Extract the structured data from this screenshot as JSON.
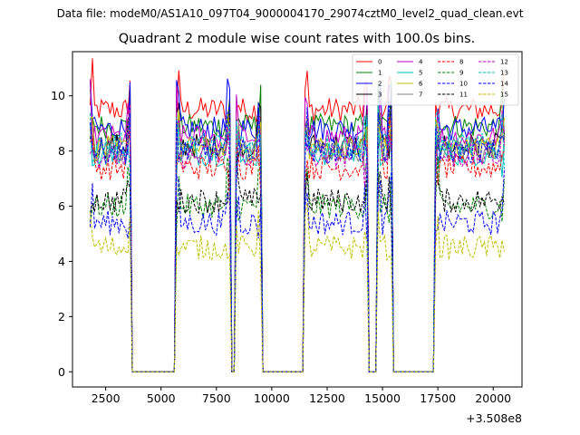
{
  "figure": {
    "suptitle": "Data file: modeM0/AS1A10_097T04_9000004170_29074cztM0_level2_quad_clean.evt"
  },
  "chart_data": {
    "type": "line",
    "title": "Quadrant 2 module wise count rates with 100.0s bins.",
    "xlabel": "",
    "ylabel": "",
    "x_offset_label": "+3.508e8",
    "xlim": [
      1000,
      21300
    ],
    "ylim": [
      -0.55,
      11.6
    ],
    "xticks": [
      2500,
      5000,
      7500,
      10000,
      12500,
      15000,
      17500,
      20000
    ],
    "xtick_labels": [
      "2500",
      "5000",
      "7500",
      "10000",
      "12500",
      "15000",
      "17500",
      "20000"
    ],
    "yticks": [
      0,
      2,
      4,
      6,
      8,
      10
    ],
    "ytick_labels": [
      "0",
      "2",
      "4",
      "6",
      "8",
      "10"
    ],
    "legend_position": "top-right",
    "legend_columns": 4,
    "bin_width_s": 100,
    "active_intervals": [
      [
        1800,
        3600
      ],
      [
        5700,
        8100
      ],
      [
        8400,
        9500
      ],
      [
        11500,
        14300
      ],
      [
        14800,
        15400
      ],
      [
        17400,
        20500
      ]
    ],
    "series": [
      {
        "name": "0",
        "color": "#ff0000",
        "dash": "solid",
        "level": 9.5
      },
      {
        "name": "1",
        "color": "#008000",
        "dash": "solid",
        "level": 8.9
      },
      {
        "name": "2",
        "color": "#0000ff",
        "dash": "solid",
        "level": 8.8
      },
      {
        "name": "3",
        "color": "#000000",
        "dash": "solid",
        "level": 8.2
      },
      {
        "name": "4",
        "color": "#bf00bf",
        "dash": "solid",
        "level": 8.5
      },
      {
        "name": "5",
        "color": "#00bfbf",
        "dash": "solid",
        "level": 7.9
      },
      {
        "name": "6",
        "color": "#bfbf00",
        "dash": "solid",
        "level": 8.1
      },
      {
        "name": "7",
        "color": "#808080",
        "dash": "solid",
        "level": 8.0
      },
      {
        "name": "8",
        "color": "#ff0000",
        "dash": "dashed",
        "level": 7.4
      },
      {
        "name": "9",
        "color": "#008000",
        "dash": "dashed",
        "level": 6.0
      },
      {
        "name": "10",
        "color": "#0000ff",
        "dash": "dashed",
        "level": 5.4
      },
      {
        "name": "11",
        "color": "#000000",
        "dash": "dashed",
        "level": 6.2
      },
      {
        "name": "12",
        "color": "#bf00bf",
        "dash": "dashed",
        "level": 7.8
      },
      {
        "name": "13",
        "color": "#00bfbf",
        "dash": "dashed",
        "level": 8.2
      },
      {
        "name": "14",
        "color": "#0000ff",
        "dash": "dashed",
        "level": 8.0
      },
      {
        "name": "15",
        "color": "#bfbf00",
        "dash": "dashed",
        "level": 4.5
      }
    ]
  }
}
